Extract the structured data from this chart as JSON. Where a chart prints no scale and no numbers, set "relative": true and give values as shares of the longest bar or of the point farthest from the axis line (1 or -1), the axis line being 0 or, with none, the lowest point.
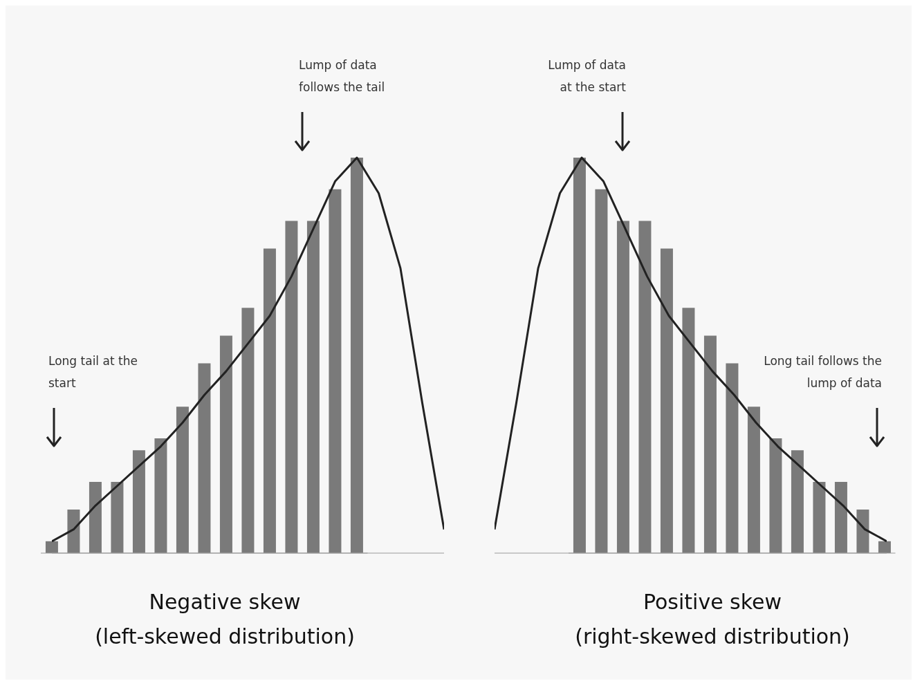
{
  "chart_data": [
    {
      "type": "bar",
      "relative": true,
      "title": "Negative skew",
      "subtitle": "(left-skewed distribution)",
      "annotations": [
        "Lump of data follows the tail",
        "Long tail at the start"
      ],
      "categories": [
        null,
        null,
        null,
        null,
        null,
        null,
        null,
        null,
        null,
        null,
        null,
        null,
        null,
        null,
        null
      ],
      "values": [
        0.03,
        0.11,
        0.18,
        0.18,
        0.26,
        0.29,
        0.37,
        0.48,
        0.55,
        0.62,
        0.77,
        0.84,
        0.84,
        0.92,
        1.0
      ],
      "color": "#7a7a7a",
      "grid": false,
      "legend": false
    },
    {
      "type": "line",
      "relative": true,
      "categories": [
        null,
        null,
        null,
        null,
        null,
        null,
        null,
        null,
        null,
        null,
        null,
        null,
        null,
        null,
        null,
        null,
        null,
        null,
        null
      ],
      "values": [
        0.03,
        0.06,
        0.12,
        0.17,
        0.22,
        0.27,
        0.33,
        0.4,
        0.46,
        0.53,
        0.6,
        0.7,
        0.82,
        0.94,
        1.0,
        0.91,
        0.72,
        0.38,
        0.06
      ],
      "color": "#222222",
      "marker": "none",
      "line_style": "solid",
      "grid": false,
      "legend": false
    },
    {
      "type": "bar",
      "relative": true,
      "title": "Positive skew",
      "subtitle": "(right-skewed distribution)",
      "annotations": [
        "Lump of data at the start",
        "Long tail follows the lump of data"
      ],
      "categories": [
        null,
        null,
        null,
        null,
        null,
        null,
        null,
        null,
        null,
        null,
        null,
        null,
        null,
        null,
        null
      ],
      "values": [
        1.0,
        0.92,
        0.84,
        0.84,
        0.77,
        0.62,
        0.55,
        0.48,
        0.37,
        0.29,
        0.26,
        0.18,
        0.18,
        0.11,
        0.03
      ],
      "color": "#7a7a7a",
      "grid": false,
      "legend": false
    },
    {
      "type": "line",
      "relative": true,
      "categories": [
        null,
        null,
        null,
        null,
        null,
        null,
        null,
        null,
        null,
        null,
        null,
        null,
        null,
        null,
        null,
        null,
        null,
        null,
        null
      ],
      "values": [
        0.06,
        0.38,
        0.72,
        0.91,
        1.0,
        0.94,
        0.82,
        0.7,
        0.6,
        0.53,
        0.46,
        0.4,
        0.33,
        0.27,
        0.22,
        0.17,
        0.12,
        0.06,
        0.03
      ],
      "color": "#222222",
      "marker": "none",
      "line_style": "solid",
      "grid": false,
      "legend": false
    }
  ]
}
